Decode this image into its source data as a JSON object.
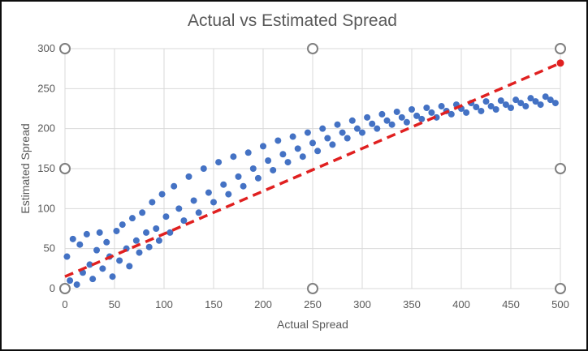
{
  "chart_data": {
    "type": "scatter",
    "title": "Actual vs Estimated Spread",
    "xlabel": "Actual Spread",
    "ylabel": "Estimated Spread",
    "xlim": [
      0,
      500
    ],
    "ylim": [
      0,
      300
    ],
    "x_ticks": [
      "0",
      "50",
      "100",
      "150",
      "200",
      "250",
      "300",
      "350",
      "400",
      "450",
      "500"
    ],
    "y_ticks": [
      "0",
      "50",
      "100",
      "150",
      "200",
      "250",
      "300"
    ],
    "grid": true,
    "legend": "none",
    "colors": {
      "points": "#4472C4",
      "trend": "#E02020",
      "frame": "#0d0d0d",
      "grid": "#d9d9d9"
    },
    "series": [
      {
        "kind": "points",
        "x": [
          2,
          5,
          8,
          12,
          15,
          18,
          22,
          25,
          28,
          32,
          35,
          38,
          42,
          45,
          48,
          52,
          55,
          58,
          62,
          65,
          68,
          72,
          75,
          78,
          82,
          85,
          88,
          92,
          95,
          98,
          102,
          106,
          110,
          115,
          120,
          125,
          130,
          135,
          140,
          145,
          150,
          155,
          160,
          165,
          170,
          175,
          180,
          185,
          190,
          195,
          200,
          205,
          210,
          215,
          220,
          225,
          230,
          235,
          240,
          245,
          250,
          255,
          260,
          265,
          270,
          275,
          280,
          285,
          290,
          295,
          300,
          305,
          310,
          315,
          320,
          325,
          330,
          335,
          340,
          345,
          350,
          355,
          360,
          365,
          370,
          375,
          380,
          385,
          390,
          395,
          400,
          405,
          410,
          415,
          420,
          425,
          430,
          435,
          440,
          445,
          450,
          455,
          460,
          465,
          470,
          475,
          480,
          485,
          490,
          495
        ],
        "y": [
          40,
          10,
          62,
          5,
          55,
          20,
          68,
          30,
          12,
          48,
          70,
          25,
          58,
          40,
          15,
          72,
          35,
          80,
          50,
          28,
          88,
          60,
          45,
          95,
          70,
          52,
          108,
          75,
          60,
          118,
          90,
          70,
          128,
          100,
          85,
          140,
          110,
          95,
          150,
          120,
          108,
          158,
          130,
          118,
          165,
          140,
          128,
          170,
          150,
          138,
          178,
          160,
          148,
          185,
          168,
          158,
          190,
          175,
          165,
          195,
          182,
          172,
          200,
          188,
          180,
          205,
          195,
          188,
          210,
          200,
          195,
          214,
          206,
          200,
          218,
          210,
          205,
          221,
          214,
          208,
          224,
          216,
          212,
          226,
          220,
          214,
          228,
          222,
          218,
          230,
          225,
          220,
          232,
          227,
          222,
          234,
          228,
          224,
          235,
          230,
          226,
          236,
          232,
          228,
          238,
          234,
          230,
          240,
          236,
          232
        ]
      },
      {
        "kind": "trendline",
        "x": [
          0,
          500
        ],
        "y": [
          15,
          282
        ]
      }
    ]
  }
}
